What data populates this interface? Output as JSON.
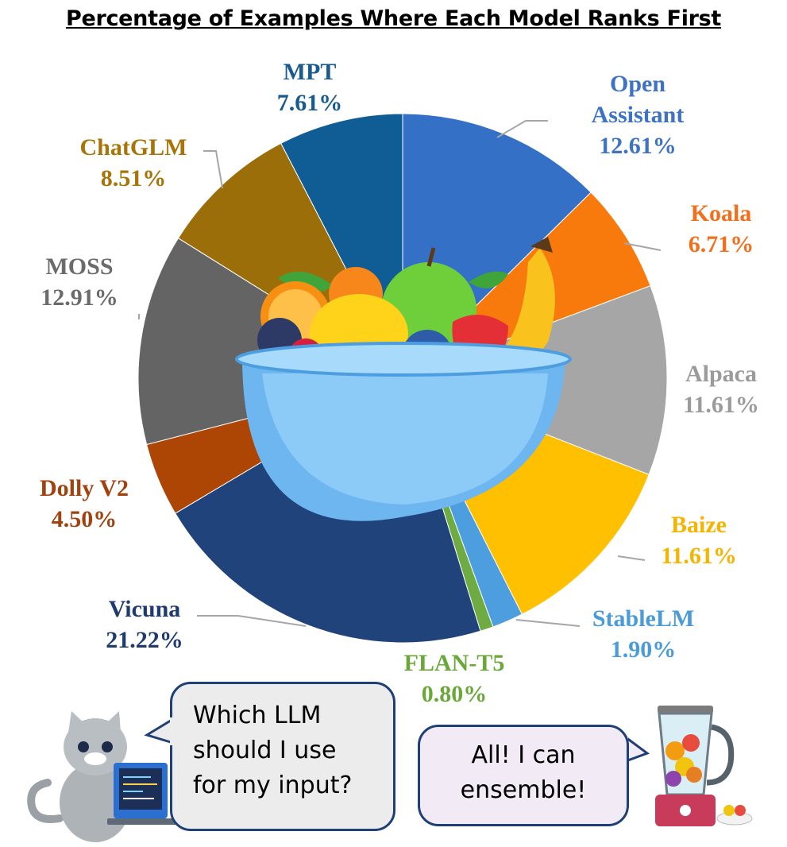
{
  "title": "Percentage of Examples Where Each Model Ranks First",
  "chart_data": {
    "type": "pie",
    "title": "Percentage of Examples Where Each Model Ranks First",
    "start_angle_deg": 0,
    "direction": "clockwise",
    "slices": [
      {
        "name_lines": [
          "Open",
          "Assistant"
        ],
        "value": 12.61,
        "label": "12.61%",
        "color": "#3470c6",
        "label_color": "#3d72c4"
      },
      {
        "name_lines": [
          "Koala"
        ],
        "value": 6.71,
        "label": "6.71%",
        "color": "#f87a0c",
        "label_color": "#f26f1b"
      },
      {
        "name_lines": [
          "Alpaca"
        ],
        "value": 11.61,
        "label": "11.61%",
        "color": "#a6a6a6",
        "label_color": "#9b9b9b"
      },
      {
        "name_lines": [
          "Baize"
        ],
        "value": 11.61,
        "label": "11.61%",
        "color": "#fec000",
        "label_color": "#f5b400"
      },
      {
        "name_lines": [
          "StableLM"
        ],
        "value": 1.9,
        "label": "1.90%",
        "color": "#4c9ede",
        "label_color": "#4a9bd9"
      },
      {
        "name_lines": [
          "FLAN-T5"
        ],
        "value": 0.8,
        "label": "0.80%",
        "color": "#6eab43",
        "label_color": "#6aa83a"
      },
      {
        "name_lines": [
          "Vicuna"
        ],
        "value": 21.22,
        "label": "21.22%",
        "color": "#1f437a",
        "label_color": "#1f3a6e"
      },
      {
        "name_lines": [
          "Dolly V2"
        ],
        "value": 4.5,
        "label": "4.50%",
        "color": "#ad4505",
        "label_color": "#a0430f"
      },
      {
        "name_lines": [
          "MOSS"
        ],
        "value": 12.91,
        "label": "12.91%",
        "color": "#646464",
        "label_color": "#6b6b6b"
      },
      {
        "name_lines": [
          "ChatGLM"
        ],
        "value": 8.51,
        "label": "8.51%",
        "color": "#9b6e0a",
        "label_color": "#a87407"
      },
      {
        "name_lines": [
          "MPT"
        ],
        "value": 7.61,
        "label": "7.61%",
        "color": "#0f5d94",
        "label_color": "#1a5b8f"
      }
    ]
  },
  "illustrations": {
    "center": "fruit-bowl",
    "left_character": "cat-with-laptop",
    "right_object": "blender-with-fruit"
  },
  "bubbles": {
    "left_lines": [
      "Which LLM",
      "should I use",
      "for my input?"
    ],
    "right_lines": [
      "All! I can",
      "ensemble!"
    ]
  }
}
